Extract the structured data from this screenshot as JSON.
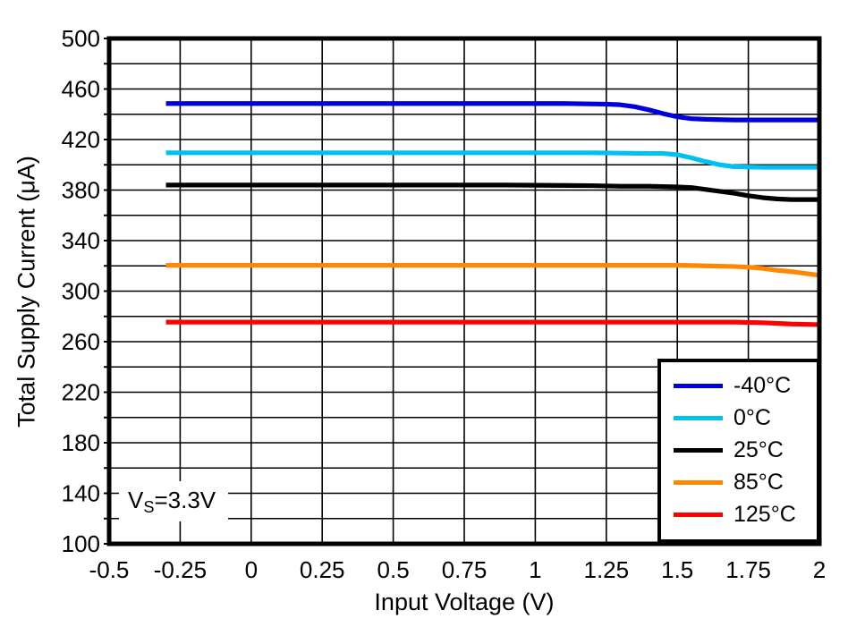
{
  "chart_data": {
    "type": "line",
    "title": "",
    "xlabel": "Input Voltage (V)",
    "ylabel": "Total Supply Current (μA)",
    "xlim": [
      -0.5,
      2
    ],
    "ylim": [
      100,
      500
    ],
    "x_ticks": [
      -0.5,
      -0.25,
      0,
      0.25,
      0.5,
      0.75,
      1,
      1.25,
      1.5,
      1.75,
      2
    ],
    "x_tick_labels": [
      "-0.5",
      "-0.25",
      "0",
      "0.25",
      "0.5",
      "0.75",
      "1",
      "1.25",
      "1.5",
      "1.75",
      "2"
    ],
    "y_ticks_labeled": [
      100,
      140,
      180,
      220,
      260,
      300,
      340,
      380,
      420,
      460,
      500
    ],
    "y_tick_labels": [
      "100",
      "140",
      "180",
      "220",
      "260",
      "300",
      "340",
      "380",
      "420",
      "460",
      "500"
    ],
    "grid": true,
    "grid_step_x": 0.25,
    "grid_step_y": 20,
    "frame_color": "#000000",
    "grid_color": "#000000",
    "annotation": {
      "prefix": "V",
      "sub": "S",
      "suffix": "=3.3V"
    },
    "legend_position": "lower right",
    "series": [
      {
        "name": "-40°C",
        "color": "#0000DD",
        "x": [
          -0.3,
          -0.1,
          0.1,
          0.3,
          0.5,
          0.7,
          0.9,
          1.1,
          1.25,
          1.3,
          1.35,
          1.4,
          1.45,
          1.5,
          1.55,
          1.6,
          1.7,
          1.8,
          1.9,
          2
        ],
        "y": [
          448.5,
          448.5,
          448.5,
          448.5,
          448.5,
          448.5,
          448.5,
          448.5,
          448,
          447.5,
          446,
          443.5,
          440.5,
          438,
          436.5,
          436,
          435.5,
          435.5,
          435.5,
          435.5
        ]
      },
      {
        "name": "0°C",
        "color": "#00C0F0",
        "x": [
          -0.3,
          0,
          0.3,
          0.6,
          0.9,
          1.2,
          1.4,
          1.45,
          1.5,
          1.55,
          1.6,
          1.65,
          1.7,
          1.8,
          1.9,
          2
        ],
        "y": [
          409.5,
          409.5,
          409.5,
          409.5,
          409.5,
          409.5,
          409,
          409,
          408,
          405.5,
          402.5,
          400,
          398.5,
          398,
          398,
          398
        ]
      },
      {
        "name": "25°C",
        "color": "#000000",
        "x": [
          -0.3,
          0,
          0.3,
          0.6,
          0.9,
          1.2,
          1.3,
          1.4,
          1.5,
          1.55,
          1.6,
          1.65,
          1.7,
          1.75,
          1.8,
          1.85,
          1.9,
          2
        ],
        "y": [
          384,
          384,
          384,
          384,
          384,
          383.5,
          383,
          383,
          382.5,
          382,
          380.5,
          379,
          377.5,
          375.5,
          374,
          373,
          372.5,
          372.5
        ]
      },
      {
        "name": "85°C",
        "color": "#FF8800",
        "x": [
          -0.3,
          0,
          0.4,
          0.8,
          1.2,
          1.5,
          1.6,
          1.7,
          1.75,
          1.8,
          1.85,
          1.9,
          1.95,
          2
        ],
        "y": [
          320.5,
          320.5,
          320.5,
          320.5,
          320.5,
          320.5,
          320,
          319.5,
          319,
          318,
          316.5,
          315.5,
          314,
          312.5
        ]
      },
      {
        "name": "125°C",
        "color": "#FF0000",
        "x": [
          -0.3,
          0,
          0.4,
          0.8,
          1.2,
          1.5,
          1.7,
          1.8,
          1.85,
          1.9,
          2
        ],
        "y": [
          275.5,
          275.5,
          275.5,
          275.5,
          275.5,
          275.5,
          275.5,
          275,
          274.5,
          274,
          273.5
        ]
      }
    ]
  }
}
